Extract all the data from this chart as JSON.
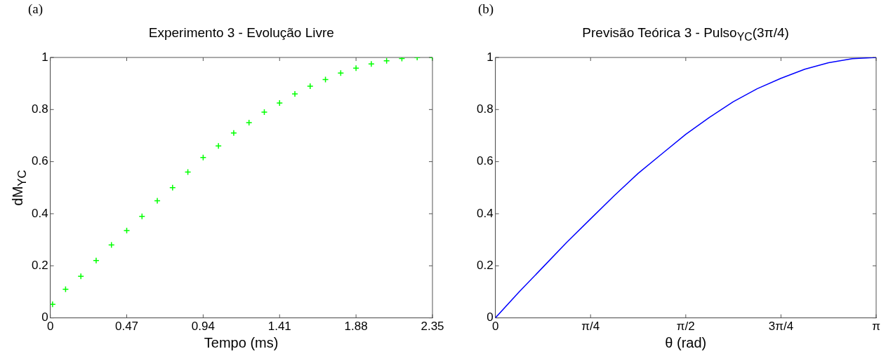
{
  "chart_data": [
    {
      "type": "scatter",
      "title": "Experimento 3 - Evolução Livre",
      "xlabel": "Tempo (ms)",
      "ylabel": "dM$_{YC}$",
      "annotations": [
        "(a)"
      ],
      "marker": "cross",
      "grid": false,
      "x": [
        0.014,
        0.094,
        0.188,
        0.282,
        0.376,
        0.47,
        0.564,
        0.658,
        0.752,
        0.846,
        0.94,
        1.034,
        1.128,
        1.222,
        1.316,
        1.41,
        1.504,
        1.598,
        1.692,
        1.786,
        1.88,
        1.974,
        2.068,
        2.162,
        2.256,
        2.35
      ],
      "series": [
        {
          "color": "#00ff00",
          "values": [
            0.052,
            0.11,
            0.16,
            0.22,
            0.28,
            0.335,
            0.39,
            0.45,
            0.5,
            0.56,
            0.616,
            0.66,
            0.71,
            0.75,
            0.79,
            0.825,
            0.86,
            0.89,
            0.915,
            0.94,
            0.959,
            0.975,
            0.987,
            0.996,
            1.0,
            1.0
          ]
        }
      ],
      "xlim": [
        0,
        2.35
      ],
      "xticks": [
        0,
        0.47,
        0.94,
        1.41,
        1.88,
        2.35
      ],
      "ylim": [
        0,
        1
      ],
      "yticks": [
        0,
        0.2,
        0.4,
        0.6,
        0.8,
        1
      ]
    },
    {
      "type": "line",
      "title": "Previsão Teórica 3 - Pulso$_{YC}$(3π/4)",
      "xlabel": "θ (rad)",
      "annotations": [
        "(b)"
      ],
      "marker": "none",
      "line_style": "solid",
      "grid": false,
      "x": [
        0,
        0.196,
        0.393,
        0.589,
        0.785,
        0.982,
        1.178,
        1.374,
        1.571,
        1.767,
        1.963,
        2.16,
        2.356,
        2.553,
        2.749,
        2.945,
        3.1416
      ],
      "series": [
        {
          "color": "#0000ff",
          "values": [
            0,
            0.1,
            0.195,
            0.29,
            0.38,
            0.47,
            0.555,
            0.63,
            0.705,
            0.77,
            0.83,
            0.88,
            0.92,
            0.955,
            0.98,
            0.995,
            1.0
          ]
        }
      ],
      "xlim": [
        0,
        3.1416
      ],
      "xticks": [
        0,
        {
          "value": 0.7854,
          "label": "π/4"
        },
        {
          "value": 1.5708,
          "label": "π/2"
        },
        {
          "value": 2.3562,
          "label": "3π/4"
        },
        {
          "value": 3.1416,
          "label": "π"
        }
      ],
      "ylim": [
        0,
        1
      ],
      "yticks": [
        0,
        0.2,
        0.4,
        0.6,
        0.8,
        1
      ]
    }
  ]
}
